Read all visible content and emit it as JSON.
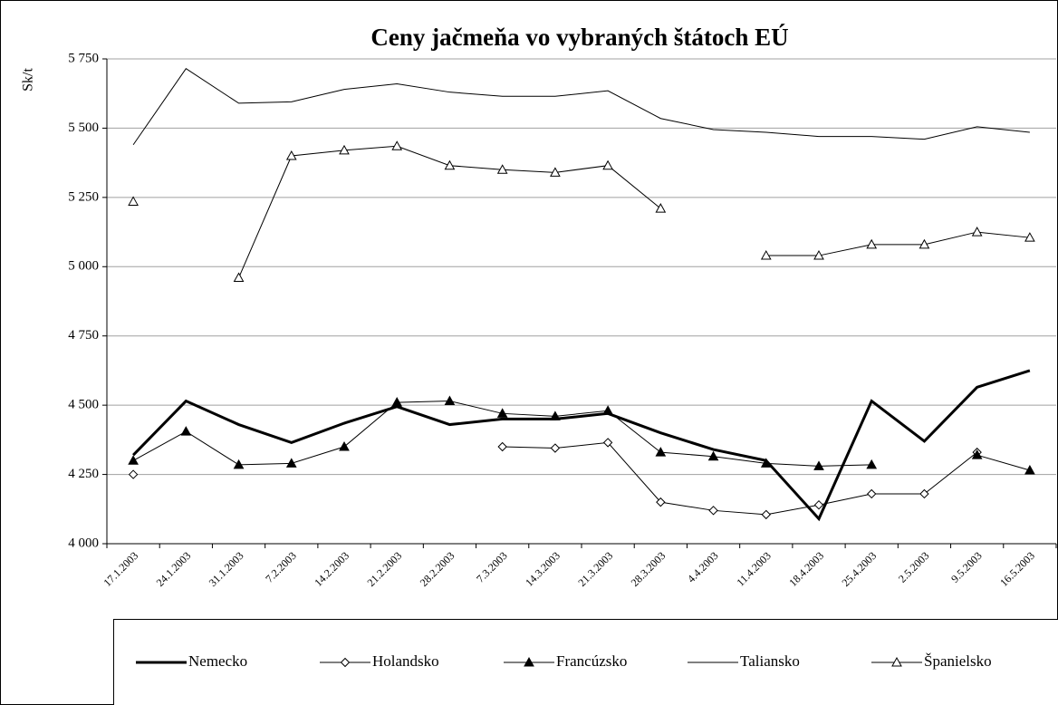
{
  "chart_data": {
    "type": "line",
    "title": "Ceny jačmeňa vo vybraných štátoch EÚ",
    "y_label": "Sk/t",
    "categories": [
      "17.1.2003",
      "24.1.2003",
      "31.1.2003",
      "7.2.2003",
      "14.2.2003",
      "21.2.2003",
      "28.2.2003",
      "7.3.2003",
      "14.3.2003",
      "21.3.2003",
      "28.3.2003",
      "4.4.2003",
      "11.4.2003",
      "18.4.2003",
      "25.4.2003",
      "2.5.2003",
      "9.5.2003",
      "16.5.2003"
    ],
    "ylim": [
      4000,
      5750
    ],
    "yticks": [
      {
        "value": 4000,
        "label": "4 000"
      },
      {
        "value": 4250,
        "label": "4 250"
      },
      {
        "value": 4500,
        "label": "4 500"
      },
      {
        "value": 4750,
        "label": "4 750"
      },
      {
        "value": 5000,
        "label": "5 000"
      },
      {
        "value": 5250,
        "label": "5 250"
      },
      {
        "value": 5500,
        "label": "5 500"
      },
      {
        "value": 5750,
        "label": "5 750"
      }
    ],
    "grid": true,
    "legend": "bottom",
    "series": [
      {
        "name": "Nemecko",
        "color": "#000000",
        "line_width": 3,
        "marker": "none",
        "values": [
          4320,
          4515,
          4430,
          4365,
          4435,
          4495,
          4430,
          4450,
          4450,
          4470,
          4400,
          4340,
          4300,
          4090,
          4515,
          4370,
          4565,
          4625
        ]
      },
      {
        "name": "Holandsko",
        "color": "#000000",
        "line_width": 1,
        "marker": "diamond",
        "values": [
          4250,
          null,
          null,
          null,
          null,
          null,
          null,
          4350,
          4345,
          4365,
          4150,
          4120,
          4105,
          4140,
          4180,
          4180,
          4330,
          null
        ]
      },
      {
        "name": "Francúzsko",
        "color": "#000000",
        "line_width": 1,
        "marker": "triangle-filled",
        "values": [
          4300,
          4405,
          4285,
          4290,
          4350,
          4510,
          4515,
          4470,
          4460,
          4480,
          4330,
          4315,
          4290,
          4280,
          4285,
          null,
          4320,
          4265
        ]
      },
      {
        "name": "Taliansko",
        "color": "#000000",
        "line_width": 1,
        "marker": "none",
        "values": [
          5440,
          5715,
          5590,
          5595,
          5640,
          5660,
          5630,
          5615,
          5615,
          5635,
          5535,
          5495,
          5485,
          5470,
          5470,
          5460,
          5505,
          5485
        ]
      },
      {
        "name": "Španielsko",
        "color": "#000000",
        "line_width": 1,
        "marker": "triangle-open",
        "values": [
          5235,
          null,
          4960,
          5400,
          5420,
          5435,
          5365,
          5350,
          5340,
          5365,
          5210,
          null,
          5040,
          5040,
          5080,
          5080,
          5125,
          5105
        ]
      }
    ]
  }
}
